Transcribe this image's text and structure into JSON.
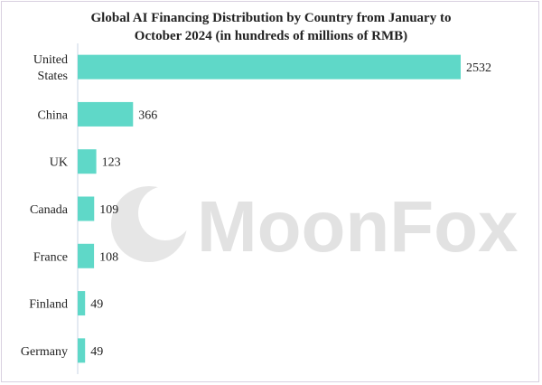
{
  "chart_data": {
    "type": "bar",
    "orientation": "horizontal",
    "title": "Global AI Financing Distribution by Country from January to October 2024 (in hundreds of millions of RMB)",
    "title_lines": [
      "Global AI Financing Distribution by Country from January to",
      "October 2024 (in hundreds of millions of RMB)"
    ],
    "categories": [
      [
        "United",
        "States"
      ],
      [
        "China"
      ],
      [
        "UK"
      ],
      [
        "Canada"
      ],
      [
        "France"
      ],
      [
        "Finland"
      ],
      [
        "Germany"
      ]
    ],
    "values": [
      2532,
      366,
      123,
      109,
      108,
      49,
      49
    ],
    "xlabel": "",
    "ylabel": "",
    "xlim": [
      0,
      2532
    ],
    "grid": false,
    "legend": "none",
    "bar_color": "#5fd8c8",
    "axis_color": "#c9d6e6"
  },
  "watermark": {
    "text": "MoonFox",
    "color": "#e2e2e2"
  }
}
